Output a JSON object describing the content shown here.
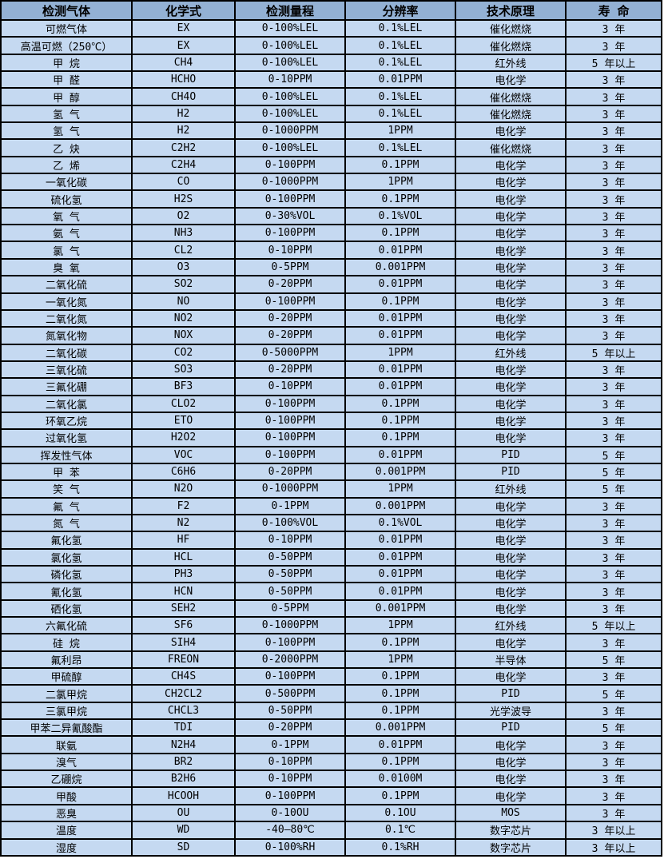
{
  "colors": {
    "header_bg": "#93B1D4",
    "row_bg": "#C5D9F1",
    "border": "#000000"
  },
  "table": {
    "columns": [
      "检测气体",
      "化学式",
      "检测量程",
      "分辨率",
      "技术原理",
      "寿 命"
    ],
    "rows": [
      [
        "可燃气体",
        "EX",
        "0-100%LEL",
        "0.1%LEL",
        "催化燃烧",
        "3 年"
      ],
      [
        "高温可燃（250℃）",
        "EX",
        "0-100%LEL",
        "0.1%LEL",
        "催化燃烧",
        "3 年"
      ],
      [
        "甲 烷",
        "CH4",
        "0-100%LEL",
        "0.1%LEL",
        "红外线",
        "5 年以上"
      ],
      [
        "甲 醛",
        "HCHO",
        "0-10PPM",
        "0.01PPM",
        "电化学",
        "3 年"
      ],
      [
        "甲 醇",
        "CH4O",
        "0-100%LEL",
        "0.1%LEL",
        "催化燃烧",
        "3 年"
      ],
      [
        "氢 气",
        "H2",
        "0-100%LEL",
        "0.1%LEL",
        "催化燃烧",
        "3 年"
      ],
      [
        "氢 气",
        "H2",
        "0-1000PPM",
        "1PPM",
        "电化学",
        "3 年"
      ],
      [
        "乙 炔",
        "C2H2",
        "0-100%LEL",
        "0.1%LEL",
        "催化燃烧",
        "3 年"
      ],
      [
        "乙 烯",
        "C2H4",
        "0-100PPM",
        "0.1PPM",
        "电化学",
        "3 年"
      ],
      [
        "一氧化碳",
        "CO",
        "0-1000PPM",
        "1PPM",
        "电化学",
        "3 年"
      ],
      [
        "硫化氢",
        "H2S",
        "0-100PPM",
        "0.1PPM",
        "电化学",
        "3 年"
      ],
      [
        "氧 气",
        "O2",
        "0-30%VOL",
        "0.1%VOL",
        "电化学",
        "3 年"
      ],
      [
        "氨 气",
        "NH3",
        "0-100PPM",
        "0.1PPM",
        "电化学",
        "3 年"
      ],
      [
        "氯 气",
        "CL2",
        "0-10PPM",
        "0.01PPM",
        "电化学",
        "3 年"
      ],
      [
        "臭 氧",
        "O3",
        "0-5PPM",
        "0.001PPM",
        "电化学",
        "3 年"
      ],
      [
        "二氧化硫",
        "SO2",
        "0-20PPM",
        "0.01PPM",
        "电化学",
        "3 年"
      ],
      [
        "一氧化氮",
        "NO",
        "0-100PPM",
        "0.1PPM",
        "电化学",
        "3 年"
      ],
      [
        "二氧化氮",
        "NO2",
        "0-20PPM",
        "0.01PPM",
        "电化学",
        "3 年"
      ],
      [
        "氮氧化物",
        "NOX",
        "0-20PPM",
        "0.01PPM",
        "电化学",
        "3 年"
      ],
      [
        "二氧化碳",
        "CO2",
        "0-5000PPM",
        "1PPM",
        "红外线",
        "5 年以上"
      ],
      [
        "三氧化硫",
        "SO3",
        "0-20PPM",
        "0.01PPM",
        "电化学",
        "3 年"
      ],
      [
        "三氟化硼",
        "BF3",
        "0-10PPM",
        "0.01PPM",
        "电化学",
        "3 年"
      ],
      [
        "二氧化氯",
        "CLO2",
        "0-100PPM",
        "0.1PPM",
        "电化学",
        "3 年"
      ],
      [
        "环氧乙烷",
        "ETO",
        "0-100PPM",
        "0.1PPM",
        "电化学",
        "3 年"
      ],
      [
        "过氧化氢",
        "H2O2",
        "0-100PPM",
        "0.1PPM",
        "电化学",
        "3 年"
      ],
      [
        "挥发性气体",
        "VOC",
        "0-100PPM",
        "0.01PPM",
        "PID",
        "5 年"
      ],
      [
        "甲 苯",
        "C6H6",
        "0-20PPM",
        "0.001PPM",
        "PID",
        "5 年"
      ],
      [
        "笑 气",
        "N2O",
        "0-1000PPM",
        "1PPM",
        "红外线",
        "5 年"
      ],
      [
        "氟 气",
        "F2",
        "0-1PPM",
        "0.001PPM",
        "电化学",
        "3 年"
      ],
      [
        "氮 气",
        "N2",
        "0-100%VOL",
        "0.1%VOL",
        "电化学",
        "3 年"
      ],
      [
        "氟化氢",
        "HF",
        "0-10PPM",
        "0.01PPM",
        "电化学",
        "3 年"
      ],
      [
        "氯化氢",
        "HCL",
        "0-50PPM",
        "0.01PPM",
        "电化学",
        "3 年"
      ],
      [
        "磷化氢",
        "PH3",
        "0-50PPM",
        "0.01PPM",
        "电化学",
        "3 年"
      ],
      [
        "氰化氢",
        "HCN",
        "0-50PPM",
        "0.01PPM",
        "电化学",
        "3 年"
      ],
      [
        "硒化氢",
        "SEH2",
        "0-5PPM",
        "0.001PPM",
        "电化学",
        "3 年"
      ],
      [
        "六氟化硫",
        "SF6",
        "0-1000PPM",
        "1PPM",
        "红外线",
        "5 年以上"
      ],
      [
        "硅 烷",
        "SIH4",
        "0-100PPM",
        "0.1PPM",
        "电化学",
        "3 年"
      ],
      [
        "氟利昂",
        "FREON",
        "0-2000PPM",
        "1PPM",
        "半导体",
        "5 年"
      ],
      [
        "甲硫醇",
        "CH4S",
        "0-100PPM",
        "0.1PPM",
        "电化学",
        "3 年"
      ],
      [
        "二氯甲烷",
        "CH2CL2",
        "0-500PPM",
        "0.1PPM",
        "PID",
        "5 年"
      ],
      [
        "三氯甲烷",
        "CHCL3",
        "0-50PPM",
        "0.1PPM",
        "光学波导",
        "3 年"
      ],
      [
        "甲苯二异氰酸酯",
        "TDI",
        "0-20PPM",
        "0.001PPM",
        "PID",
        "5 年"
      ],
      [
        "联氨",
        "N2H4",
        "0-1PPM",
        "0.01PPM",
        "电化学",
        "3 年"
      ],
      [
        "溴气",
        "BR2",
        "0-10PPM",
        "0.1PPM",
        "电化学",
        "3 年"
      ],
      [
        "乙硼烷",
        "B2H6",
        "0-10PPM",
        "0.0100M",
        "电化学",
        "3 年"
      ],
      [
        "甲酸",
        "HCOOH",
        "0-100PPM",
        "0.1PPM",
        "电化学",
        "3 年"
      ],
      [
        "恶臭",
        "OU",
        "0-10OU",
        "0.1OU",
        "MOS",
        "3 年"
      ],
      [
        "温度",
        "WD",
        "-40—80℃",
        "0.1℃",
        "数字芯片",
        "3 年以上"
      ],
      [
        "湿度",
        "SD",
        "0-100%RH",
        "0.1%RH",
        "数字芯片",
        "3 年以上"
      ]
    ]
  }
}
